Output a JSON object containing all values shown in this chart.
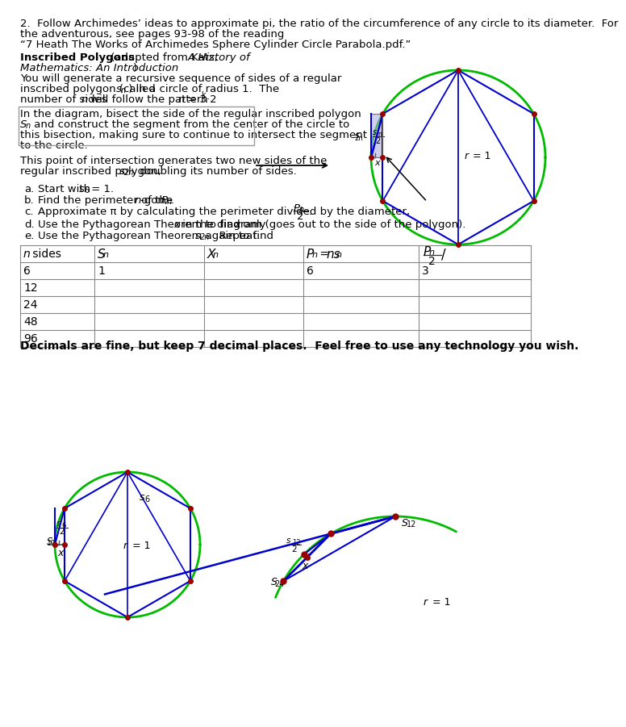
{
  "bg_color": "#ffffff",
  "text_color": "#000000",
  "circle_color": "#00bb00",
  "poly_color": "#0000cc",
  "dot_color": "#990000",
  "line1": "2.  Follow Archimedes’ ideas to approximate pi, the ratio of the circumference of any circle to its diameter.  For",
  "line2": "the adventurous, see pages 93-98 of the reading",
  "line3": "“7 Heath The Works of Archimedes Sphere Cylinder Circle Parabola.pdf.”",
  "bold_note": "Decimals are fine, but keep 7 decimal places.  Feel free to use any technology you wish.",
  "table_rows": [
    [
      "6",
      "1",
      "",
      "6",
      "3"
    ],
    [
      "12",
      "",
      "",
      "",
      ""
    ],
    [
      "24",
      "",
      "",
      "",
      ""
    ],
    [
      "48",
      "",
      "",
      "",
      ""
    ],
    [
      "96",
      "",
      "",
      "",
      ""
    ]
  ],
  "fs": 9.5,
  "fs_small": 7.5,
  "fs_table": 10
}
